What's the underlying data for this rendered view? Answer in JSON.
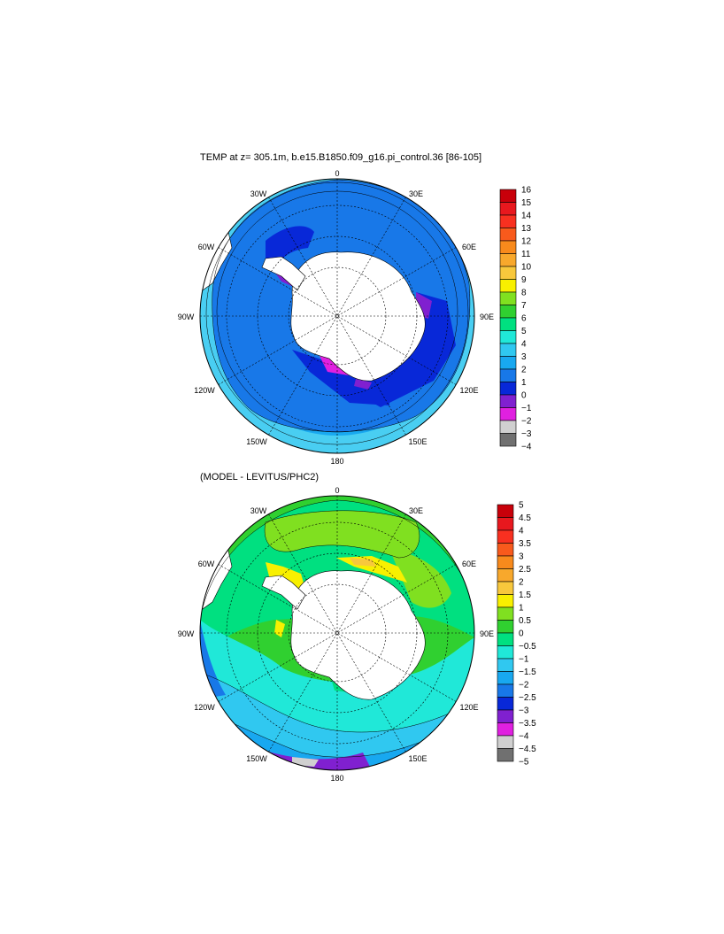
{
  "panels": [
    {
      "title": "TEMP at z= 305.1m, b.e15.B1850.f09_g16.pi_control.36 [86-105]",
      "lon_labels": [
        "0",
        "30E",
        "60E",
        "90E",
        "120E",
        "150E",
        "180",
        "150W",
        "120W",
        "90W",
        "60W",
        "30W"
      ],
      "colorbar": {
        "labels": [
          "16",
          "15",
          "14",
          "13",
          "12",
          "11",
          "10",
          "9",
          "8",
          "7",
          "6",
          "5",
          "4",
          "3",
          "2",
          "1",
          "0",
          "−1",
          "−2",
          "−3",
          "−4"
        ],
        "colors": [
          "#c8000a",
          "#e8181e",
          "#f83020",
          "#f85a1c",
          "#f88a1c",
          "#f8a82c",
          "#f8c83c",
          "#f8f000",
          "#80e020",
          "#30d030",
          "#00e080",
          "#20e8d8",
          "#30c8f0",
          "#18a8f0",
          "#1878e8",
          "#0828d8",
          "#8020d0",
          "#e020e0",
          "#d0d0d0",
          "#707070"
        ]
      }
    },
    {
      "title": "(MODEL - LEVITUS/PHC2)",
      "lon_labels": [
        "0",
        "30E",
        "60E",
        "90E",
        "120E",
        "150E",
        "180",
        "150W",
        "120W",
        "90W",
        "60W",
        "30W"
      ],
      "colorbar": {
        "labels": [
          "5",
          "4.5",
          "4",
          "3.5",
          "3",
          "2.5",
          "2",
          "1.5",
          "1",
          "0.5",
          "0",
          "−0.5",
          "−1",
          "−1.5",
          "−2",
          "−2.5",
          "−3",
          "−3.5",
          "−4",
          "−4.5",
          "−5"
        ],
        "colors": [
          "#c8000a",
          "#e8181e",
          "#f83020",
          "#f85a1c",
          "#f88a1c",
          "#f8a82c",
          "#f8c83c",
          "#f8f000",
          "#80e020",
          "#30d030",
          "#00e080",
          "#20e8d8",
          "#30c8f0",
          "#18a8f0",
          "#1878e8",
          "#0828d8",
          "#8020d0",
          "#e020e0",
          "#d0d0d0",
          "#707070"
        ]
      }
    }
  ]
}
